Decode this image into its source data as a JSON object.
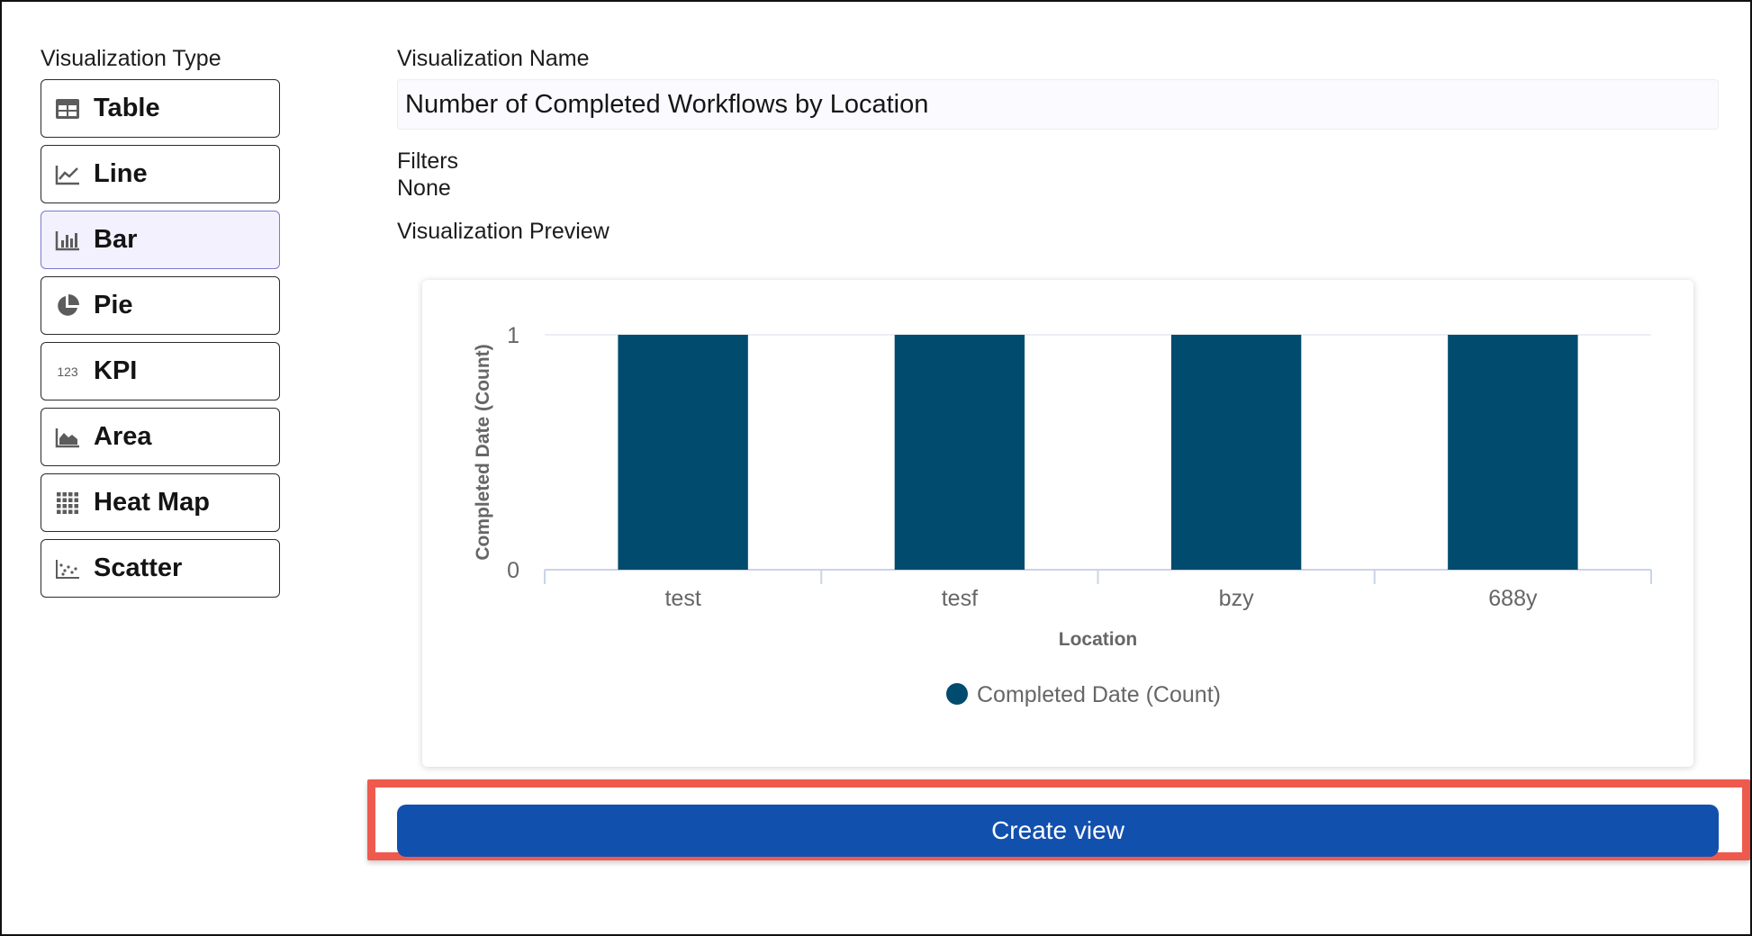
{
  "visualization_type": {
    "label": "Visualization Type",
    "items": [
      {
        "label": "Table",
        "icon": "table-icon",
        "selected": false
      },
      {
        "label": "Line",
        "icon": "line-chart-icon",
        "selected": false
      },
      {
        "label": "Bar",
        "icon": "bar-chart-icon",
        "selected": true
      },
      {
        "label": "Pie",
        "icon": "pie-chart-icon",
        "selected": false
      },
      {
        "label": "KPI",
        "icon": "kpi-icon",
        "selected": false
      },
      {
        "label": "Area",
        "icon": "area-chart-icon",
        "selected": false
      },
      {
        "label": "Heat Map",
        "icon": "heat-map-icon",
        "selected": false
      },
      {
        "label": "Scatter",
        "icon": "scatter-icon",
        "selected": false
      }
    ],
    "kpi_icon_text": "123"
  },
  "visualization_name": {
    "label": "Visualization Name",
    "value": "Number of Completed Workflows by Location"
  },
  "filters": {
    "label": "Filters",
    "value": "None"
  },
  "preview": {
    "label": "Visualization Preview"
  },
  "chart_data": {
    "type": "bar",
    "categories": [
      "test",
      "tesf",
      "bzy",
      "688y"
    ],
    "series": [
      {
        "name": "Completed Date (Count)",
        "values": [
          1,
          1,
          1,
          1
        ],
        "color": "#004b6e"
      }
    ],
    "xlabel": "Location",
    "ylabel": "Completed Date (Count)",
    "ylim": [
      0,
      1
    ],
    "yticks": [
      0,
      1
    ],
    "grid": true,
    "legend": "bottom"
  },
  "actions": {
    "create_label": "Create view"
  },
  "colors": {
    "accent": "#1250ae",
    "highlight": "#ee5a4e",
    "bar": "#004b6e",
    "selected_bg": "#f2f1fd"
  }
}
